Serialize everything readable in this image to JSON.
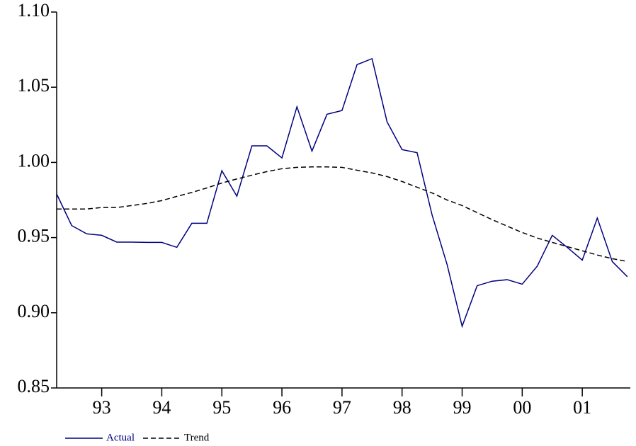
{
  "chart_data": {
    "type": "line",
    "x": [
      1992.25,
      1992.5,
      1992.75,
      1993,
      1993.25,
      1993.5,
      1993.75,
      1994,
      1994.25,
      1994.5,
      1994.75,
      1995,
      1995.25,
      1995.5,
      1995.75,
      1996,
      1996.25,
      1996.5,
      1996.75,
      1997,
      1997.25,
      1997.5,
      1997.75,
      1998,
      1998.25,
      1998.5,
      1998.75,
      1999,
      1999.25,
      1999.5,
      1999.75,
      2000,
      2000.25,
      2000.5,
      2000.75,
      2001,
      2001.25,
      2001.5,
      2001.75
    ],
    "series": [
      {
        "name": "Actual",
        "color": "#000080",
        "dash": false,
        "values": [
          0.979,
          0.958,
          0.9525,
          0.9515,
          0.947,
          0.947,
          0.9468,
          0.9468,
          0.9435,
          0.9595,
          0.9595,
          0.9945,
          0.9775,
          1.011,
          1.011,
          1.003,
          1.037,
          1.0075,
          1.032,
          1.0345,
          1.065,
          1.069,
          1.027,
          1.0085,
          1.0065,
          0.965,
          0.932,
          0.891,
          0.918,
          0.921,
          0.922,
          0.919,
          0.931,
          0.9515,
          0.9435,
          0.935,
          0.963,
          0.934,
          0.924
        ]
      },
      {
        "name": "Trend",
        "color": "#000000",
        "dash": true,
        "values": [
          0.969,
          0.969,
          0.969,
          0.97,
          0.97,
          0.9713,
          0.9727,
          0.9746,
          0.9774,
          0.98,
          0.983,
          0.9863,
          0.989,
          0.9915,
          0.9939,
          0.9958,
          0.9967,
          0.997,
          0.997,
          0.9967,
          0.9948,
          0.993,
          0.9906,
          0.9873,
          0.9835,
          0.9797,
          0.975,
          0.9713,
          0.9666,
          0.9619,
          0.9576,
          0.9534,
          0.9497,
          0.9468,
          0.944,
          0.9412,
          0.9384,
          0.936,
          0.9341
        ]
      }
    ],
    "xlim": [
      1992.25,
      2001.8
    ],
    "xticks": [
      {
        "value": 1993,
        "label": "93"
      },
      {
        "value": 1994,
        "label": "94"
      },
      {
        "value": 1995,
        "label": "95"
      },
      {
        "value": 1996,
        "label": "96"
      },
      {
        "value": 1997,
        "label": "97"
      },
      {
        "value": 1998,
        "label": "98"
      },
      {
        "value": 1999,
        "label": "99"
      },
      {
        "value": 2000,
        "label": "00"
      },
      {
        "value": 2001,
        "label": "01"
      }
    ],
    "ylim": [
      0.85,
      1.1
    ],
    "yticks": [
      0.85,
      {
        "value": 0.9,
        "label": "0.90"
      },
      0.95,
      {
        "value": 1.0,
        "label": "1.00"
      },
      1.05,
      {
        "value": 1.1,
        "label": "1.10"
      }
    ],
    "grid": false,
    "legend": "bottom-left"
  }
}
